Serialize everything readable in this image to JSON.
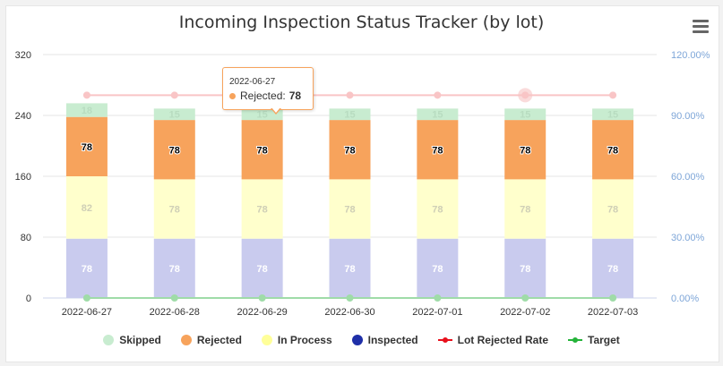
{
  "chart_data": {
    "type": "bar",
    "stacked": true,
    "title": "Incoming Inspection Status Tracker (by lot)",
    "categories": [
      "2022-06-27",
      "2022-06-28",
      "2022-06-29",
      "2022-06-30",
      "2022-07-01",
      "2022-07-02",
      "2022-07-03"
    ],
    "y_left": {
      "ticks": [
        "0",
        "80",
        "160",
        "240",
        "320"
      ],
      "ylim": [
        0,
        320
      ]
    },
    "y_right": {
      "ticks": [
        "0.00%",
        "30.00%",
        "60.00%",
        "90.00%",
        "120.00%"
      ],
      "ylim": [
        0,
        120
      ]
    },
    "series": [
      {
        "name": "Skipped",
        "type": "bar",
        "color": "#c8ecd0",
        "values": [
          18,
          15,
          15,
          15,
          15,
          15,
          15
        ]
      },
      {
        "name": "Rejected",
        "type": "bar",
        "color": "#f7a35c",
        "values": [
          78,
          78,
          78,
          78,
          78,
          78,
          78
        ]
      },
      {
        "name": "In Process",
        "type": "bar",
        "color": "#ffffcc",
        "values": [
          82,
          78,
          78,
          78,
          78,
          78,
          78
        ]
      },
      {
        "name": "Inspected",
        "type": "bar",
        "color": "#c9cbee",
        "values": [
          78,
          78,
          78,
          78,
          78,
          78,
          78
        ]
      },
      {
        "name": "Lot Rejected Rate",
        "type": "line",
        "axis": "right",
        "color": "#f45b5b",
        "values": [
          100,
          100,
          100,
          100,
          100,
          100,
          100
        ]
      },
      {
        "name": "Target",
        "type": "line",
        "axis": "right",
        "color": "#25b33a",
        "values": [
          0,
          0,
          0,
          0,
          0,
          0,
          0
        ]
      }
    ],
    "legend_position": "bottom",
    "grid": true
  },
  "legend": [
    {
      "label": "Skipped",
      "marker": "dot",
      "color": "#c8ecd0"
    },
    {
      "label": "Rejected",
      "marker": "dot",
      "color": "#f7a35c"
    },
    {
      "label": "In Process",
      "marker": "dot",
      "color": "#ffff99"
    },
    {
      "label": "Inspected",
      "marker": "dot",
      "color": "#1f2fa8"
    },
    {
      "label": "Lot Rejected Rate",
      "marker": "line",
      "color": "#e8101c"
    },
    {
      "label": "Target",
      "marker": "line",
      "color": "#25b33a"
    }
  ],
  "tooltip": {
    "date": "2022-06-27",
    "series": "Rejected:",
    "value": "78",
    "color": "#f7a35c"
  },
  "menu": {
    "icon": "hamburger-menu-icon"
  }
}
